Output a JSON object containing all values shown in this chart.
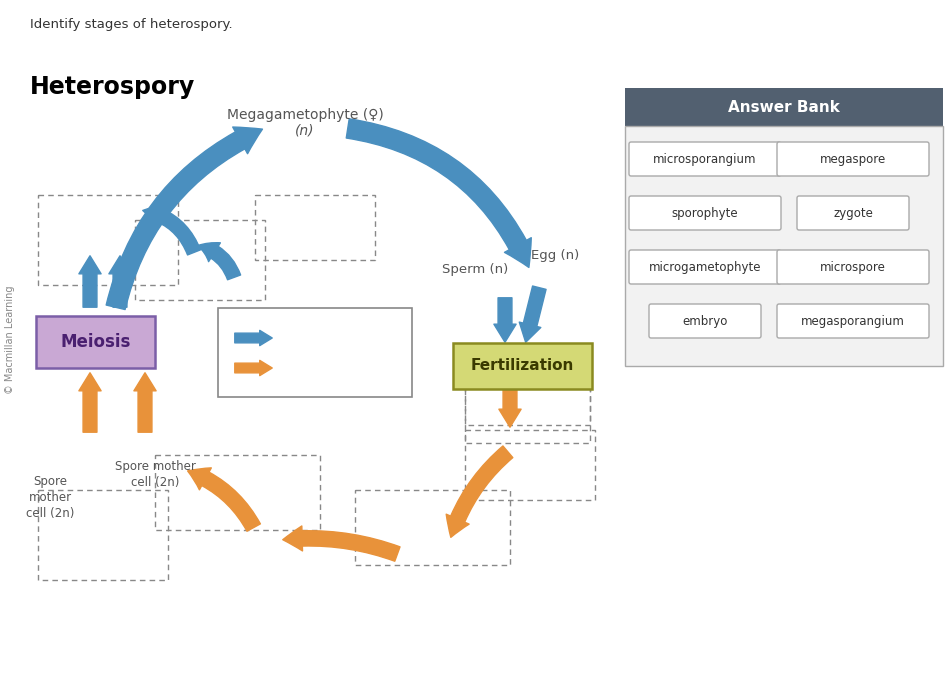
{
  "title": "Heterospory",
  "subtitle": "Identify stages of heterospory.",
  "copyright": "© Macmillan Learning",
  "blue_color": "#4A8FBF",
  "orange_color": "#E8923A",
  "meiosis_bg": "#C9A8D4",
  "meiosis_border": "#7B5EA7",
  "meiosis_text": "#4A2070",
  "fertilization_bg": "#D4D975",
  "fertilization_border": "#8A8A20",
  "fertilization_text": "#3A3A00",
  "answer_bank_header_bg": "#526070",
  "answer_bank_bg": "#F2F2F2",
  "answer_bank_border": "#AAAAAA",
  "label_color": "#555555",
  "answer_bank_items": [
    [
      "microsporangium",
      "megaspore"
    ],
    [
      "sporophyte",
      "zygote"
    ],
    [
      "microgametophyte",
      "microspore"
    ],
    [
      "embryo",
      "megasporangium"
    ]
  ]
}
